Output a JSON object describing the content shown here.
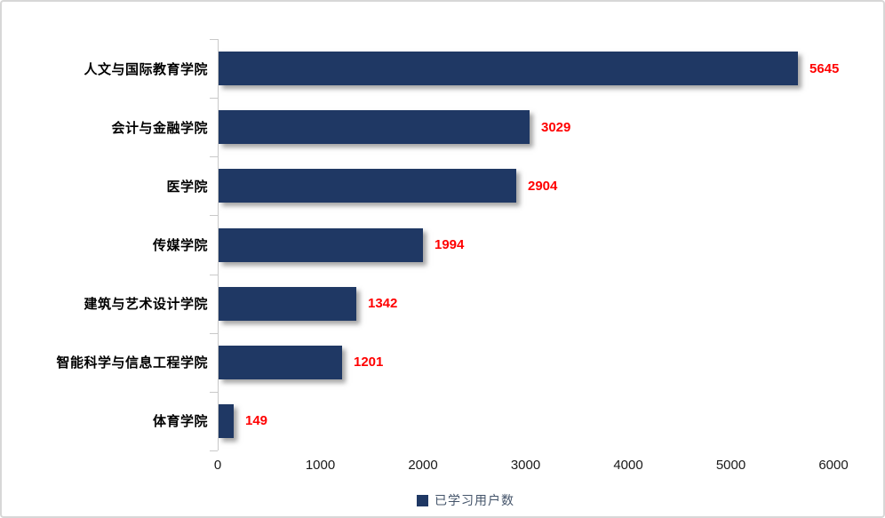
{
  "chart_data": {
    "type": "bar",
    "orientation": "horizontal",
    "title": "",
    "categories": [
      "人文与国际教育学院",
      "会计与金融学院",
      "医学院",
      "传媒学院",
      "建筑与艺术设计学院",
      "智能科学与信息工程学院",
      "体育学院"
    ],
    "values": [
      5645,
      3029,
      2904,
      1994,
      1342,
      1201,
      149
    ],
    "series_name": "已学习用户数",
    "xticks": [
      "0",
      "1000",
      "2000",
      "3000",
      "4000",
      "5000",
      "6000"
    ],
    "xlim": [
      0,
      6000
    ],
    "grid": "off",
    "legend_position": "bottom",
    "bar_color": "#1f3864",
    "value_label_color": "#ff0000",
    "axis_color": "#c9c9c9"
  },
  "legend": {
    "label": "已学习用户数"
  }
}
